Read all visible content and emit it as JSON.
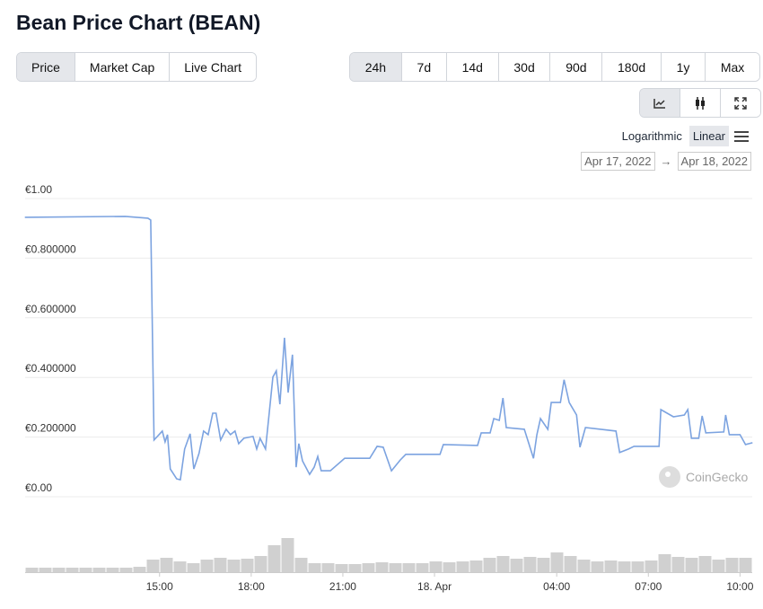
{
  "header": {
    "title": "Bean Price Chart (BEAN)"
  },
  "tabs": [
    {
      "label": "Price",
      "selected": true
    },
    {
      "label": "Market Cap",
      "selected": false
    },
    {
      "label": "Live Chart",
      "selected": false
    }
  ],
  "ranges": [
    {
      "label": "24h",
      "selected": true
    },
    {
      "label": "7d",
      "selected": false
    },
    {
      "label": "14d",
      "selected": false
    },
    {
      "label": "30d",
      "selected": false
    },
    {
      "label": "90d",
      "selected": false
    },
    {
      "label": "180d",
      "selected": false
    },
    {
      "label": "1y",
      "selected": false
    },
    {
      "label": "Max",
      "selected": false
    }
  ],
  "scale_options": [
    {
      "label": "Logarithmic",
      "selected": false
    },
    {
      "label": "Linear",
      "selected": true
    }
  ],
  "date_range": {
    "from": "Apr 17, 2022",
    "arrow": "→",
    "to": "Apr 18, 2022"
  },
  "watermark": "CoinGecko",
  "chart_data": {
    "type": "line",
    "color": "#7ca3e0",
    "grid": true,
    "x": [
      10.59,
      13.88,
      14.62,
      14.71,
      14.82,
      15.09,
      15.18,
      15.26,
      15.35,
      15.56,
      15.68,
      15.82,
      16.0,
      16.12,
      16.29,
      16.44,
      16.59,
      16.74,
      16.85,
      17.0,
      17.18,
      17.32,
      17.47,
      17.59,
      17.76,
      18.06,
      18.18,
      18.29,
      18.47,
      18.59,
      18.71,
      18.82,
      18.94,
      19.09,
      19.21,
      19.35,
      19.47,
      19.56,
      19.68,
      19.91,
      20.06,
      20.18,
      20.29,
      20.59,
      21.06,
      21.88,
      22.12,
      22.32,
      22.59,
      22.88,
      23.06,
      24.18,
      24.29,
      25.41,
      25.53,
      25.82,
      25.94,
      26.12,
      26.24,
      26.35,
      26.94,
      27.24,
      27.35,
      27.47,
      27.71,
      27.82,
      28.12,
      28.24,
      28.41,
      28.65,
      28.76,
      28.94,
      29.94,
      30.06,
      30.35,
      30.53,
      31.35,
      31.41,
      31.82,
      32.18,
      32.29,
      32.41,
      32.65,
      32.76,
      32.88,
      33.47,
      33.53,
      33.65,
      34.0,
      34.18,
      34.41
    ],
    "values": [
      0.922,
      0.925,
      0.919,
      0.913,
      0.175,
      0.205,
      0.169,
      0.193,
      0.078,
      0.045,
      0.042,
      0.145,
      0.196,
      0.078,
      0.13,
      0.205,
      0.193,
      0.265,
      0.265,
      0.175,
      0.211,
      0.193,
      0.205,
      0.163,
      0.181,
      0.187,
      0.145,
      0.181,
      0.145,
      0.265,
      0.386,
      0.407,
      0.295,
      0.518,
      0.334,
      0.461,
      0.084,
      0.163,
      0.105,
      0.06,
      0.084,
      0.12,
      0.072,
      0.072,
      0.114,
      0.114,
      0.154,
      0.151,
      0.072,
      0.108,
      0.127,
      0.127,
      0.16,
      0.157,
      0.199,
      0.199,
      0.247,
      0.241,
      0.316,
      0.217,
      0.211,
      0.114,
      0.193,
      0.247,
      0.211,
      0.301,
      0.301,
      0.377,
      0.301,
      0.259,
      0.151,
      0.217,
      0.205,
      0.133,
      0.145,
      0.154,
      0.154,
      0.277,
      0.253,
      0.259,
      0.277,
      0.181,
      0.181,
      0.256,
      0.199,
      0.202,
      0.259,
      0.193,
      0.193,
      0.16,
      0.166
    ],
    "xlim": [
      10.6,
      34.4
    ],
    "ylim": [
      0,
      1
    ],
    "xticks": [
      {
        "value": 15,
        "label": "15:00"
      },
      {
        "value": 18,
        "label": "18:00"
      },
      {
        "value": 21,
        "label": "21:00"
      },
      {
        "value": 24,
        "label": "18. Apr"
      },
      {
        "value": 28,
        "label": "04:00"
      },
      {
        "value": 31,
        "label": "07:00"
      },
      {
        "value": 34,
        "label": "10:00"
      }
    ],
    "yticks": [
      {
        "value": 0,
        "label": "€0.00"
      },
      {
        "value": 0.2,
        "label": "€0.200000"
      },
      {
        "value": 0.4,
        "label": "€0.400000"
      },
      {
        "value": 0.6,
        "label": "€0.600000"
      },
      {
        "value": 0.8,
        "label": "€0.800000"
      },
      {
        "value": 1,
        "label": "€1.00"
      }
    ],
    "volume": {
      "color": "#d0d0d0",
      "values": [
        5,
        5,
        5,
        5,
        5,
        5,
        5,
        5,
        6,
        14,
        16,
        12,
        10,
        14,
        16,
        14,
        15,
        18,
        30,
        38,
        16,
        10,
        10,
        9,
        9,
        10,
        11,
        10,
        10,
        10,
        12,
        11,
        12,
        13,
        16,
        18,
        15,
        17,
        16,
        22,
        18,
        14,
        12,
        13,
        12,
        12,
        13,
        20,
        17,
        16,
        18,
        14,
        16,
        16
      ]
    }
  }
}
